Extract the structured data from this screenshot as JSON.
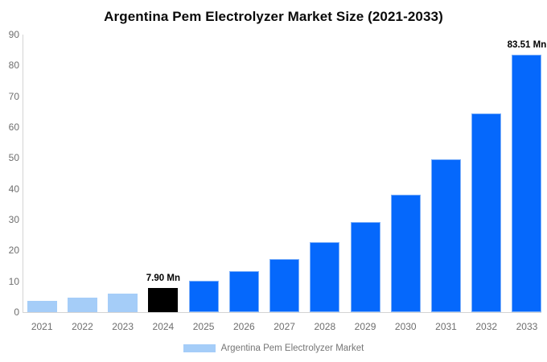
{
  "chart_data": {
    "type": "bar",
    "title": "Argentina Pem Electrolyzer Market Size (2021-2033)",
    "categories": [
      "2021",
      "2022",
      "2023",
      "2024",
      "2025",
      "2026",
      "2027",
      "2028",
      "2029",
      "2030",
      "2031",
      "2032",
      "2033"
    ],
    "values": [
      3.6,
      4.7,
      6.1,
      7.9,
      10.3,
      13.3,
      17.3,
      22.6,
      29.3,
      38.1,
      49.5,
      64.4,
      83.51
    ],
    "unit": "Mn",
    "xlabel": "",
    "ylabel": "",
    "ylim": [
      0,
      90
    ],
    "yticks": [
      "0",
      "10",
      "20",
      "30",
      "40",
      "50",
      "60",
      "70",
      "80",
      "90"
    ],
    "grid": false,
    "annotations": [
      {
        "category": "2024",
        "text": "7.90 Mn"
      },
      {
        "category": "2033",
        "text": "83.51 Mn"
      }
    ],
    "bar_roles": [
      "historical",
      "historical",
      "historical",
      "base_year",
      "forecast",
      "forecast",
      "forecast",
      "forecast",
      "forecast",
      "forecast",
      "forecast",
      "forecast",
      "forecast"
    ],
    "colors": {
      "historical": "#a5cdf8",
      "base_year": "#000000",
      "forecast": "#0568fc",
      "forecast_border": "#7fb1f9",
      "axis_line": "#d4d4d4",
      "tick_text": "#6e6e6e",
      "annotation_text": "#000000",
      "title_text": "#0a0a0a",
      "legend_text": "#757575"
    },
    "legend": {
      "position": "bottom",
      "entries": [
        {
          "label": "Argentina Pem Electrolyzer Market",
          "color": "#a5cdf8"
        }
      ]
    }
  }
}
